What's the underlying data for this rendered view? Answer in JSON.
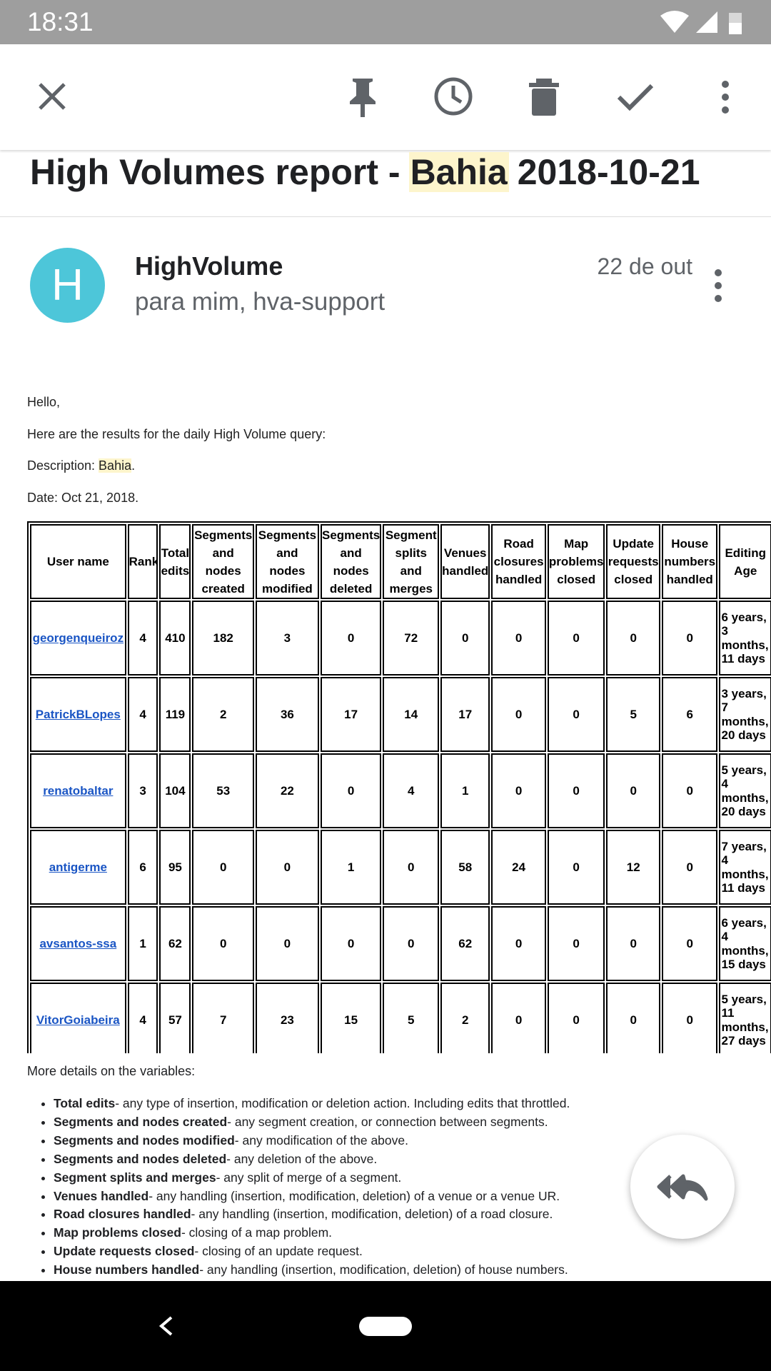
{
  "status_bar": {
    "time": "18:31"
  },
  "subject": {
    "prefix": "High Volumes report -",
    "highlight": "Bahia",
    "suffix": "2018-10-21"
  },
  "message": {
    "avatar": "H",
    "sender": "HighVolume",
    "recipients": "para mim, hva-support",
    "date": "22 de out"
  },
  "body": {
    "greeting": "Hello,",
    "intro": "Here are the results for the daily High Volume query:",
    "description": {
      "label": "Description:",
      "value": "Bahia",
      "end": "."
    },
    "date": "Date: Oct 21, 2018."
  },
  "table": {
    "headers": [
      "User name",
      "Rank",
      "Total edits",
      "Segments and nodes created",
      "Segments and nodes modified",
      "Segments and nodes deleted",
      "Segment splits and merges",
      "Venues handled",
      "Road closures handled",
      "Map problems closed",
      "Update requests closed",
      "House numbers handled",
      "Editing Age"
    ],
    "rows": [
      [
        "georgenqueiroz",
        4,
        410,
        182,
        3,
        0,
        72,
        0,
        0,
        0,
        0,
        0,
        "6 years, 3 months, 11 days"
      ],
      [
        "PatrickBLopes",
        4,
        119,
        2,
        36,
        17,
        14,
        17,
        0,
        0,
        5,
        6,
        "3 years, 7 months, 20 days"
      ],
      [
        "renatobaltar",
        3,
        104,
        53,
        22,
        0,
        4,
        1,
        0,
        0,
        0,
        0,
        "5 years, 4 months, 20 days"
      ],
      [
        "antigerme",
        6,
        95,
        0,
        0,
        1,
        0,
        58,
        24,
        0,
        12,
        0,
        "7 years, 4 months, 11 days"
      ],
      [
        "avsantos-ssa",
        1,
        62,
        0,
        0,
        0,
        0,
        62,
        0,
        0,
        0,
        0,
        "6 years, 4 months, 15 days"
      ],
      [
        "VitorGoiabeira",
        4,
        57,
        7,
        23,
        15,
        5,
        2,
        0,
        0,
        0,
        0,
        "5 years, 11 months, 27 days"
      ]
    ]
  },
  "details": {
    "heading": "More details on the variables:",
    "items": [
      {
        "term": "Total edits",
        "text": "- any type of insertion, modification or deletion action. Including edits that throttled."
      },
      {
        "term": "Segments and nodes created",
        "text": "- any segment creation, or connection between segments."
      },
      {
        "term": "Segments and nodes modified",
        "text": "- any modification of the above."
      },
      {
        "term": "Segments and nodes deleted",
        "text": "- any deletion of the above."
      },
      {
        "term": "Segment splits and merges",
        "text": "- any split of merge of a segment."
      },
      {
        "term": "Venues handled",
        "text": "- any handling (insertion, modification, deletion) of a venue or a venue UR."
      },
      {
        "term": "Road closures handled",
        "text": "- any handling (insertion, modification, deletion) of a road closure."
      },
      {
        "term": "Map problems closed",
        "text": "- closing of a map problem."
      },
      {
        "term": "Update requests closed",
        "text": "- closing of an update request."
      },
      {
        "term": "House numbers handled",
        "text": "- any handling (insertion, modification, deletion) of house numbers."
      }
    ]
  }
}
